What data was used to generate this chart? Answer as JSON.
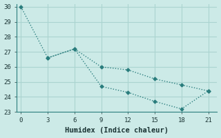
{
  "xlabel": "Humidex (Indice chaleur)",
  "ylabel": "",
  "background_color": "#cceae7",
  "grid_color": "#aad4d0",
  "line1_x": [
    0,
    3,
    6,
    9,
    12,
    15,
    18,
    21
  ],
  "line1_y": [
    30,
    26.6,
    27.2,
    26.0,
    25.8,
    25.2,
    24.8,
    24.4
  ],
  "line2_x": [
    3,
    6,
    9,
    12,
    15,
    18,
    21
  ],
  "line2_y": [
    26.6,
    27.2,
    24.7,
    24.3,
    23.7,
    23.2,
    24.4
  ],
  "line_color": "#2a7d7d",
  "xlim": [
    -0.5,
    22
  ],
  "ylim": [
    23,
    30.2
  ],
  "xticks": [
    0,
    3,
    6,
    9,
    12,
    15,
    18,
    21
  ],
  "yticks": [
    23,
    24,
    25,
    26,
    27,
    28,
    29,
    30
  ],
  "marker": "D",
  "marker_size": 2.5,
  "xlabel_fontsize": 7.5,
  "tick_fontsize": 6.5
}
